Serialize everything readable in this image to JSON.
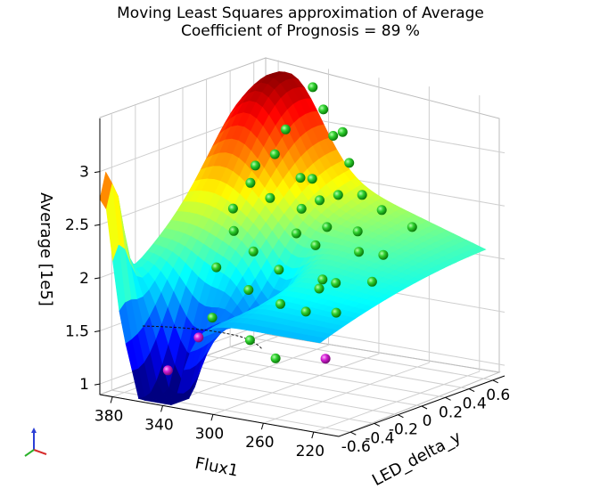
{
  "chart_data": {
    "type": "surface3d",
    "title_lines": [
      "Moving Least Squares approximation of Average",
      "Coefficient of Prognosis = 89 %"
    ],
    "xlabel": "Flux1",
    "ylabel": "LED_delta_y",
    "zlabel": "Average [1e5]",
    "x_ticks": [
      "380",
      "340",
      "300",
      "260",
      "220"
    ],
    "y_ticks": [
      "-0.6",
      "-0.4",
      "-0.2",
      "0",
      "0.2",
      "0.4",
      "0.6"
    ],
    "z_ticks": [
      "1",
      "1.5",
      "2",
      "2.5",
      "3"
    ],
    "xlim": [
      200,
      390
    ],
    "ylim": [
      -0.7,
      0.7
    ],
    "zlim": [
      0.9,
      3.5
    ],
    "grid": true,
    "colormap": "jet",
    "support_points_color": "#22cc22",
    "outlier_points_color": "#cc00cc",
    "support_points": [
      {
        "x": 345,
        "y": 0.62,
        "z": 3.35
      },
      {
        "x": 330,
        "y": 0.55,
        "z": 3.2
      },
      {
        "x": 310,
        "y": 0.5,
        "z": 3.05
      },
      {
        "x": 325,
        "y": 0.58,
        "z": 2.95
      },
      {
        "x": 360,
        "y": 0.55,
        "z": 2.95
      },
      {
        "x": 345,
        "y": 0.3,
        "z": 2.85
      },
      {
        "x": 300,
        "y": 0.45,
        "z": 2.8
      },
      {
        "x": 320,
        "y": 0.25,
        "z": 2.7
      },
      {
        "x": 290,
        "y": 0.25,
        "z": 2.6
      },
      {
        "x": 370,
        "y": 0.4,
        "z": 2.65
      },
      {
        "x": 330,
        "y": 0.1,
        "z": 2.55
      },
      {
        "x": 305,
        "y": 0.1,
        "z": 2.5
      },
      {
        "x": 280,
        "y": 0.05,
        "z": 2.4
      },
      {
        "x": 260,
        "y": 0.3,
        "z": 2.5
      },
      {
        "x": 350,
        "y": 0.0,
        "z": 2.45
      },
      {
        "x": 295,
        "y": -0.05,
        "z": 2.35
      },
      {
        "x": 275,
        "y": -0.1,
        "z": 2.3
      },
      {
        "x": 250,
        "y": 0.0,
        "z": 2.25
      },
      {
        "x": 315,
        "y": -0.2,
        "z": 2.2
      },
      {
        "x": 290,
        "y": -0.25,
        "z": 2.1
      },
      {
        "x": 260,
        "y": -0.2,
        "z": 2.05
      },
      {
        "x": 240,
        "y": -0.3,
        "z": 2.1
      },
      {
        "x": 300,
        "y": -0.4,
        "z": 1.95
      },
      {
        "x": 270,
        "y": -0.45,
        "z": 1.9
      },
      {
        "x": 245,
        "y": -0.5,
        "z": 1.9
      },
      {
        "x": 225,
        "y": -0.6,
        "z": 2.2
      },
      {
        "x": 235,
        "y": -0.35,
        "z": 1.85
      },
      {
        "x": 310,
        "y": -0.6,
        "z": 1.75
      },
      {
        "x": 280,
        "y": -0.6,
        "z": 1.6
      },
      {
        "x": 255,
        "y": -0.65,
        "z": 1.5
      },
      {
        "x": 335,
        "y": -0.3,
        "z": 2.05
      },
      {
        "x": 320,
        "y": 0.35,
        "z": 2.65
      },
      {
        "x": 355,
        "y": 0.2,
        "z": 2.6
      },
      {
        "x": 265,
        "y": 0.15,
        "z": 2.35
      },
      {
        "x": 240,
        "y": 0.1,
        "z": 2.2
      },
      {
        "x": 300,
        "y": 0.2,
        "z": 2.55
      },
      {
        "x": 285,
        "y": 0.4,
        "z": 2.55
      },
      {
        "x": 340,
        "y": -0.1,
        "z": 2.3
      },
      {
        "x": 230,
        "y": -0.1,
        "z": 2.05
      },
      {
        "x": 250,
        "y": 0.45,
        "z": 2.3
      }
    ],
    "outlier_points": [
      {
        "x": 350,
        "y": -0.55,
        "z": 1.15
      },
      {
        "x": 335,
        "y": -0.45,
        "z": 1.45
      },
      {
        "x": 220,
        "y": -0.6,
        "z": 1.55
      }
    ],
    "contour_level": 1.5
  }
}
